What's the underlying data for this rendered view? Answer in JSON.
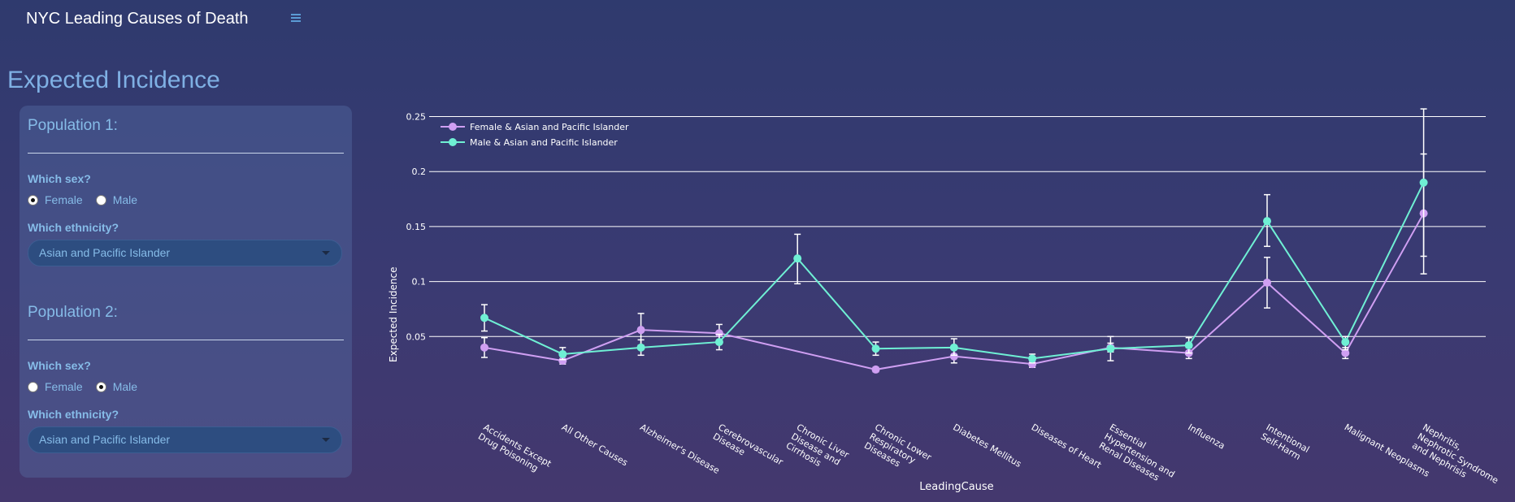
{
  "app": {
    "title": "NYC Leading Causes of Death",
    "menu_icon": "hamburger-menu-icon"
  },
  "page": {
    "title": "Expected Incidence"
  },
  "populations": [
    {
      "heading": "Population 1:",
      "sex_label": "Which sex?",
      "sex_options": [
        "Female",
        "Male"
      ],
      "sex_selected": "Female",
      "ethnicity_label": "Which ethnicity?",
      "ethnicity_value": "Asian and Pacific Islander"
    },
    {
      "heading": "Population 2:",
      "sex_label": "Which sex?",
      "sex_options": [
        "Female",
        "Male"
      ],
      "sex_selected": "Male",
      "ethnicity_label": "Which ethnicity?",
      "ethnicity_value": "Asian and Pacific Islander"
    }
  ],
  "colors": {
    "female": "#cf9ff2",
    "male": "#6ff0d4",
    "accent": "#86bce8"
  },
  "chart_data": {
    "type": "line",
    "title": "",
    "xlabel": "LeadingCause",
    "ylabel": "Expected Incidence",
    "ylim": [
      0,
      0.26
    ],
    "yticks": [
      0.05,
      0.1,
      0.15,
      0.2,
      0.25
    ],
    "ytick_labels": [
      "0.05",
      "0.1",
      "0.15",
      "0.2",
      "0.25"
    ],
    "grid": true,
    "legend_position": "top-left",
    "categories": [
      [
        "Accidents Except",
        "Drug Poisoning"
      ],
      [
        "All Other Causes"
      ],
      [
        "Alzheimer's Disease"
      ],
      [
        "Cerebrovascular",
        "Disease"
      ],
      [
        "Chronic Liver",
        "Disease and",
        "Cirrhosis"
      ],
      [
        "Chronic Lower",
        "Respiratory",
        "Diseases"
      ],
      [
        "Diabetes Mellitus"
      ],
      [
        "Diseases of Heart"
      ],
      [
        "Essential",
        "Hypertension and",
        "Renal Diseases"
      ],
      [
        "Influenza"
      ],
      [
        "Intentional",
        "Self-Harm"
      ],
      [
        "Malignant Neoplasms"
      ],
      [
        "Nephritis,",
        "Nephrotic Syndrome",
        "and Nephrisis"
      ]
    ],
    "series": [
      {
        "name": "Female & Asian and Pacific Islander",
        "color": "#cf9ff2",
        "points": [
          {
            "x": 0,
            "y": 0.04,
            "lo": 0.031,
            "hi": 0.049
          },
          {
            "x": 1,
            "y": 0.028,
            "lo": 0.025,
            "hi": 0.032
          },
          {
            "x": 2,
            "y": 0.056,
            "lo": 0.042,
            "hi": 0.071
          },
          {
            "x": 3,
            "y": 0.053,
            "lo": 0.045,
            "hi": 0.061
          },
          {
            "x": 5,
            "y": 0.02,
            "lo": 0.018,
            "hi": 0.022
          },
          {
            "x": 6,
            "y": 0.032,
            "lo": 0.026,
            "hi": 0.039
          },
          {
            "x": 7,
            "y": 0.025,
            "lo": 0.022,
            "hi": 0.028
          },
          {
            "x": 8,
            "y": 0.04,
            "lo": 0.036,
            "hi": 0.044
          },
          {
            "x": 9,
            "y": 0.035,
            "lo": 0.03,
            "hi": 0.04
          },
          {
            "x": 10,
            "y": 0.099,
            "lo": 0.076,
            "hi": 0.122
          },
          {
            "x": 11,
            "y": 0.035,
            "lo": 0.03,
            "hi": 0.04
          },
          {
            "x": 12,
            "y": 0.162,
            "lo": 0.107,
            "hi": 0.216
          }
        ]
      },
      {
        "name": "Male & Asian and Pacific Islander",
        "color": "#6ff0d4",
        "points": [
          {
            "x": 0,
            "y": 0.067,
            "lo": 0.055,
            "hi": 0.079
          },
          {
            "x": 1,
            "y": 0.034,
            "lo": 0.029,
            "hi": 0.04
          },
          {
            "x": 2,
            "y": 0.04,
            "lo": 0.033,
            "hi": 0.047
          },
          {
            "x": 3,
            "y": 0.045,
            "lo": 0.038,
            "hi": 0.052
          },
          {
            "x": 4,
            "y": 0.121,
            "lo": 0.098,
            "hi": 0.143
          },
          {
            "x": 5,
            "y": 0.039,
            "lo": 0.033,
            "hi": 0.045
          },
          {
            "x": 6,
            "y": 0.04,
            "lo": 0.033,
            "hi": 0.048
          },
          {
            "x": 7,
            "y": 0.03,
            "lo": 0.026,
            "hi": 0.034
          },
          {
            "x": 8,
            "y": 0.039,
            "lo": 0.028,
            "hi": 0.05
          },
          {
            "x": 9,
            "y": 0.042,
            "lo": 0.035,
            "hi": 0.049
          },
          {
            "x": 10,
            "y": 0.155,
            "lo": 0.132,
            "hi": 0.179
          },
          {
            "x": 11,
            "y": 0.045,
            "lo": 0.038,
            "hi": 0.05
          },
          {
            "x": 12,
            "y": 0.19,
            "lo": 0.123,
            "hi": 0.257
          }
        ]
      }
    ]
  }
}
